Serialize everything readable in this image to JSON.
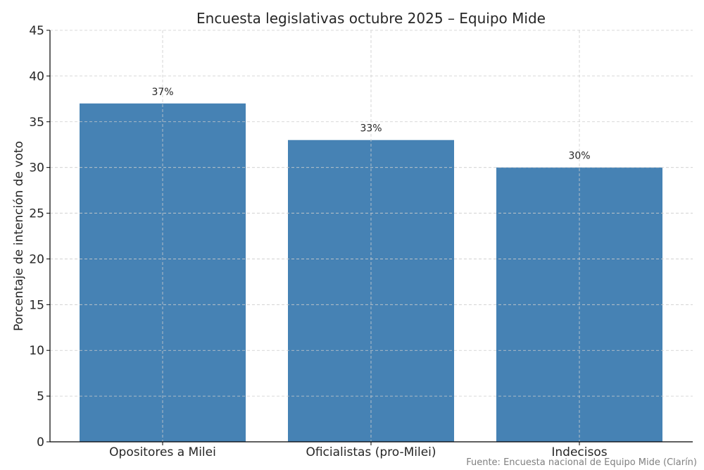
{
  "chart_data": {
    "type": "bar",
    "title": "Encuesta legislativas octubre 2025 – Equipo Mide",
    "xlabel": "",
    "ylabel": "Porcentaje de intención de voto",
    "categories": [
      "Opositores a Milei",
      "Oficialistas (pro-Milei)",
      "Indecisos"
    ],
    "values": [
      37,
      33,
      30
    ],
    "data_labels": [
      "37%",
      "33%",
      "30%"
    ],
    "ylim": [
      0,
      45
    ],
    "yticks": [
      0,
      5,
      10,
      15,
      20,
      25,
      30,
      35,
      40,
      45
    ],
    "grid": true,
    "bar_color": "#4682b4",
    "legend": null,
    "source": "Fuente: Encuesta nacional de Equipo Mide (Clarín)"
  }
}
